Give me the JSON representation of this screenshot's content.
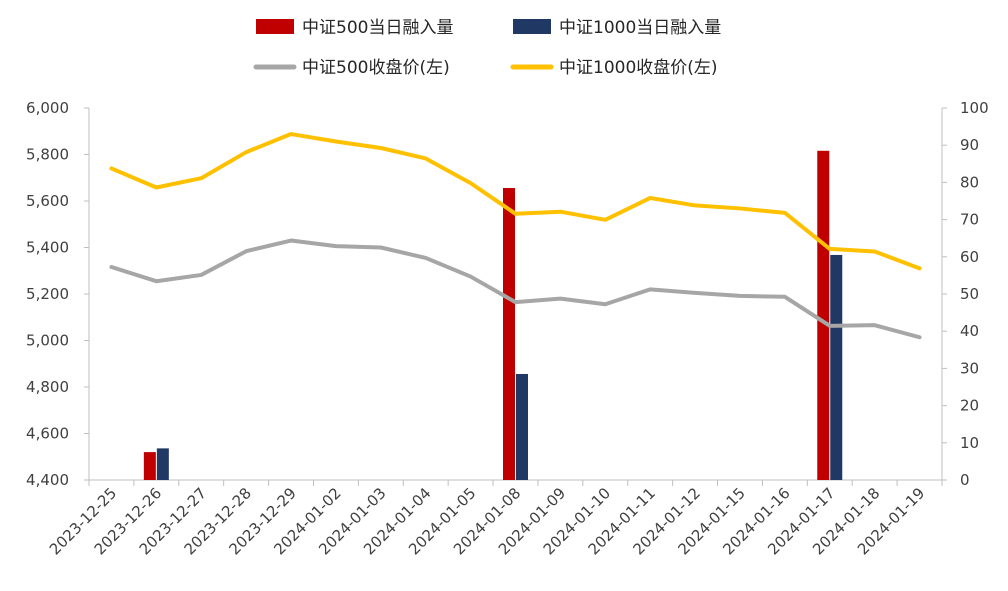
{
  "chart_data": {
    "type": "bar+line",
    "categories": [
      "2023-12-25",
      "2023-12-26",
      "2023-12-27",
      "2023-12-28",
      "2023-12-29",
      "2024-01-02",
      "2024-01-03",
      "2024-01-04",
      "2024-01-05",
      "2024-01-08",
      "2024-01-09",
      "2024-01-10",
      "2024-01-11",
      "2024-01-12",
      "2024-01-15",
      "2024-01-16",
      "2024-01-17",
      "2024-01-18",
      "2024-01-19"
    ],
    "left_axis": {
      "ylim": [
        4400,
        6000
      ],
      "ticks": [
        "4,400",
        "4,600",
        "4,800",
        "5,000",
        "5,200",
        "5,400",
        "5,600",
        "5,800",
        "6,000"
      ]
    },
    "right_axis": {
      "ylim": [
        0,
        100
      ],
      "ticks": [
        "0",
        "10",
        "20",
        "30",
        "40",
        "50",
        "60",
        "70",
        "80",
        "90",
        "100"
      ]
    },
    "bar_series": [
      {
        "name": "中证500当日融入量",
        "color": "#c00000",
        "axis": "right",
        "values": [
          null,
          7.5,
          null,
          null,
          null,
          null,
          null,
          null,
          null,
          78.5,
          null,
          null,
          null,
          null,
          null,
          null,
          88.5,
          null,
          null
        ]
      },
      {
        "name": "中证1000当日融入量",
        "color": "#1f3864",
        "axis": "right",
        "values": [
          null,
          8.5,
          null,
          null,
          null,
          null,
          null,
          null,
          null,
          28.5,
          null,
          null,
          null,
          null,
          null,
          null,
          60.5,
          null,
          null
        ]
      }
    ],
    "line_series": [
      {
        "name": "中证500收盘价(左)",
        "color": "#a6a6a6",
        "axis": "left",
        "values": [
          5316,
          5255,
          5282,
          5384,
          5430,
          5406,
          5400,
          5355,
          5275,
          5165,
          5180,
          5156,
          5220,
          5205,
          5192,
          5188,
          5063,
          5066,
          5014
        ]
      },
      {
        "name": "中证1000收盘价(左)",
        "color": "#ffc000",
        "axis": "left",
        "values": [
          5740,
          5658,
          5698,
          5810,
          5888,
          5856,
          5828,
          5783,
          5677,
          5545,
          5554,
          5519,
          5613,
          5581,
          5568,
          5549,
          5394,
          5383,
          5310
        ]
      }
    ],
    "legend": {
      "placement": "top-center"
    },
    "grid": false
  }
}
